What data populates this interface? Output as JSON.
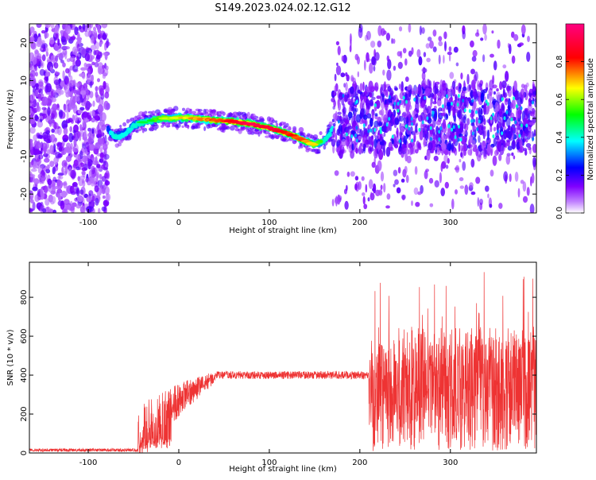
{
  "title": "S149.2023.024.02.12.G12",
  "chart_data": [
    {
      "type": "heatmap",
      "xlabel": "Height of straight line (km)",
      "ylabel": "Frequency (Hz)",
      "xlim": [
        -165,
        395
      ],
      "ylim": [
        -25,
        25
      ],
      "x_ticks": [
        -100,
        0,
        100,
        200,
        300
      ],
      "y_ticks": [
        -20,
        -10,
        0,
        10,
        20
      ],
      "colorbar": {
        "label": "Normalized spectral amplitude",
        "range": [
          0,
          1
        ],
        "ticks": [
          0.0,
          0.2,
          0.4,
          0.6,
          0.8
        ],
        "colors": [
          "#ffffff",
          "#8000ff",
          "#0000ff",
          "#00ffff",
          "#00ff00",
          "#ffff00",
          "#ff0000",
          "#ff0080"
        ]
      },
      "ridge": {
        "x": [
          -78,
          -70,
          -60,
          -50,
          -40,
          -30,
          -20,
          -10,
          0,
          20,
          40,
          60,
          80,
          100,
          120,
          135,
          150,
          160,
          170
        ],
        "y": [
          -3,
          -5,
          -4,
          -2,
          -1,
          -0.5,
          0,
          0,
          0.2,
          0,
          -0.5,
          -0.8,
          -1.5,
          -2.5,
          -4,
          -5.5,
          -7,
          -6,
          -3
        ],
        "amplitude": [
          0.35,
          0.45,
          0.4,
          0.45,
          0.5,
          0.55,
          0.6,
          0.65,
          0.7,
          0.75,
          0.8,
          0.9,
          0.95,
          0.95,
          0.85,
          0.8,
          0.7,
          0.5,
          0.4
        ]
      }
    },
    {
      "type": "line",
      "xlabel": "Height of straight line (km)",
      "ylabel": "SNR (10 * v/v)",
      "xlim": [
        -165,
        395
      ],
      "ylim": [
        0,
        980
      ],
      "x_ticks": [
        -100,
        0,
        100,
        200,
        300
      ],
      "y_ticks": [
        0,
        200,
        400,
        600,
        800
      ],
      "color": "#ee3333",
      "segments": [
        {
          "x_range": [
            -165,
            -45
          ],
          "level": 15,
          "noise": 8
        },
        {
          "x_range": [
            -45,
            40
          ],
          "level_start": 60,
          "level_end": 390,
          "noise": 150
        },
        {
          "x_range": [
            40,
            210
          ],
          "level": 400,
          "noise": 20
        },
        {
          "x_range": [
            210,
            395
          ],
          "level": 330,
          "noise": 320,
          "max": 970
        }
      ]
    }
  ]
}
